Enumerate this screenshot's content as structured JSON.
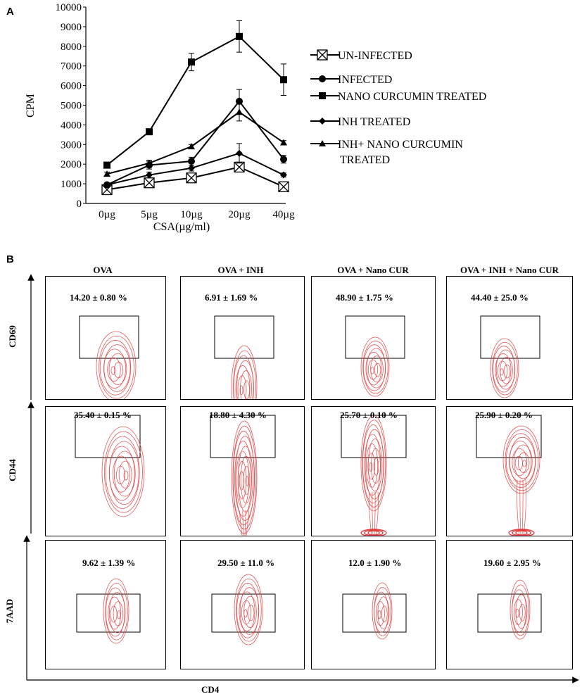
{
  "panel_a": {
    "label": "A",
    "legend": [
      {
        "name": "UN-INFECTED",
        "marker": "boxed-x"
      },
      {
        "name": "INFECTED",
        "marker": "circle"
      },
      {
        "name": "NANO CURCUMIN TREATED",
        "marker": "square"
      },
      {
        "name": "INH TREATED",
        "marker": "diamond"
      },
      {
        "name": "INH+ NANO CURCUMIN TREATED",
        "marker": "triangle"
      }
    ]
  },
  "chart_data": {
    "type": "line",
    "ylabel": "CPM",
    "xlabel": "CSA(µg/ml)",
    "categories": [
      "0µg",
      "5µg",
      "10µg",
      "20µg",
      "40µg"
    ],
    "ylim": [
      0,
      10000
    ],
    "yticks": [
      0,
      1000,
      2000,
      3000,
      4000,
      5000,
      6000,
      7000,
      8000,
      9000,
      10000
    ],
    "series": [
      {
        "name": "UN-INFECTED",
        "values": [
          700,
          1050,
          1300,
          1850,
          850
        ],
        "errors": [
          100,
          100,
          150,
          250,
          100
        ]
      },
      {
        "name": "INFECTED",
        "values": [
          950,
          1950,
          2150,
          5200,
          2250
        ],
        "errors": [
          100,
          200,
          200,
          600,
          200
        ]
      },
      {
        "name": "NANO CURCUMIN TREATED",
        "values": [
          1950,
          3650,
          7200,
          8500,
          6300
        ],
        "errors": [
          100,
          150,
          450,
          800,
          800
        ]
      },
      {
        "name": "INH TREATED",
        "values": [
          950,
          1450,
          1800,
          2550,
          1450
        ],
        "errors": [
          100,
          150,
          150,
          500,
          100
        ]
      },
      {
        "name": "INH+ NANO CURCUMIN TREATED",
        "values": [
          1500,
          2050,
          2900,
          4650,
          3100
        ],
        "errors": [
          100,
          150,
          100,
          450,
          100
        ]
      }
    ]
  },
  "panel_b": {
    "label": "B",
    "columns": [
      "OVA",
      "OVA + INH",
      "OVA + Nano  CUR",
      "OVA + INH + Nano  CUR"
    ],
    "rows": [
      {
        "marker": "CD69",
        "gates": [
          "14.20 ± 0.80 %",
          "6.91 ± 1.69 %",
          "48.90 ± 1.75 %",
          "44.40 ± 25.0 %"
        ]
      },
      {
        "marker": "CD44",
        "gates": [
          "35.40 ± 0.15 %",
          "18.80 ± 4.30 %",
          "25.70 ± 0.10 %",
          "25.90 ± 0.20 %"
        ]
      },
      {
        "marker": "7AAD",
        "gates": [
          "9.62 ± 1.39 %",
          "29.50 ± 11.0 %",
          "12.0 ± 1.90 %",
          "19.60 ± 2.95 %"
        ]
      }
    ],
    "x_axis": "CD4",
    "contour_color": "#e23b3b"
  }
}
